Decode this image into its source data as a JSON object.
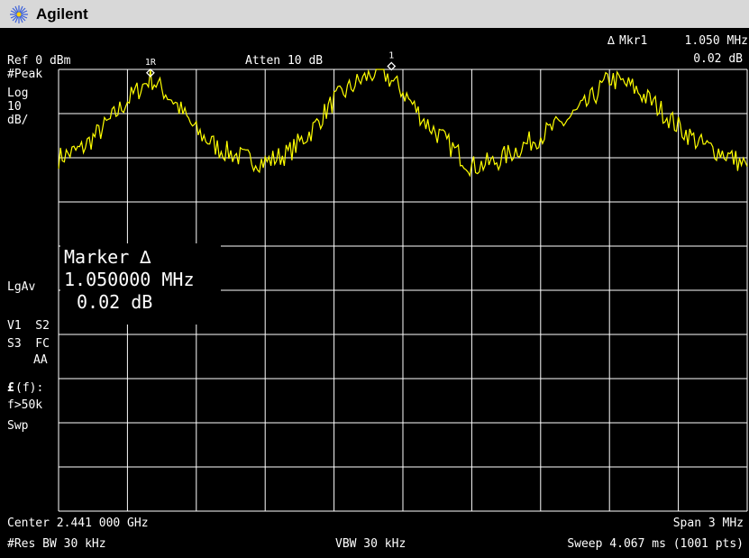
{
  "app": {
    "brand": "Agilent",
    "logo_icon": "agilent-spark-icon"
  },
  "header": {
    "marker_readout_label": "Mkr1",
    "marker_readout_freq": "1.050 MHz",
    "marker_readout_amp": "0.02 dB",
    "ref_level": "Ref 0 dBm",
    "attenuation": "Atten 10 dB"
  },
  "left_panel": {
    "detector": "#Peak",
    "scale_type": "Log",
    "scale_value": "10",
    "scale_unit": "dB/",
    "average": "LgAv",
    "v1s2": "V1  S2",
    "s3fc": "S3  FC",
    "aa": "AA",
    "ef_symbol": "£",
    "ef_label": "(f):",
    "filter": "f>50k",
    "swp": "Swp"
  },
  "marker_box": {
    "title": "Marker ∆",
    "freq": "1.050000 MHz",
    "amp": "0.02 dB"
  },
  "markers": [
    {
      "label": "1R"
    },
    {
      "label": "1"
    }
  ],
  "footer": {
    "center": "Center 2.441 000 GHz",
    "span": "Span 3 MHz",
    "res_bw": "#Res BW 30 kHz",
    "vbw": "VBW 30 kHz",
    "sweep": "Sweep 4.067 ms (1001 pts)"
  },
  "colors": {
    "trace": "#ffff00",
    "grid": "#ffffff",
    "background": "#000000",
    "titlebar": "#d8d8d8"
  },
  "chart_data": {
    "type": "line",
    "x_unit": "MHz offset from center",
    "xlim": [
      -1.5,
      1.5
    ],
    "ylim": [
      -100,
      0
    ],
    "y_scale": "log 10 dB/div",
    "series": [
      {
        "x": [
          -1.5,
          -1.4,
          -1.3,
          -1.2,
          -1.1,
          -1.0,
          -0.9,
          -0.8,
          -0.7,
          -0.6,
          -0.5,
          -0.4,
          -0.3,
          -0.2,
          -0.1,
          0.0,
          0.1,
          0.2,
          0.3,
          0.4,
          0.5,
          0.6,
          0.7,
          0.8,
          0.9,
          1.0,
          1.1,
          1.2,
          1.3,
          1.4,
          1.5
        ],
        "y": [
          -20,
          -18,
          -13,
          -7,
          -2,
          -7,
          -14,
          -18,
          -20,
          -21,
          -19,
          -14,
          -7,
          -3,
          0,
          -5,
          -12,
          -17,
          -22,
          -21,
          -18,
          -15,
          -12,
          -8,
          -2,
          -4,
          -8,
          -13,
          -17,
          -19,
          -22
        ]
      }
    ]
  }
}
